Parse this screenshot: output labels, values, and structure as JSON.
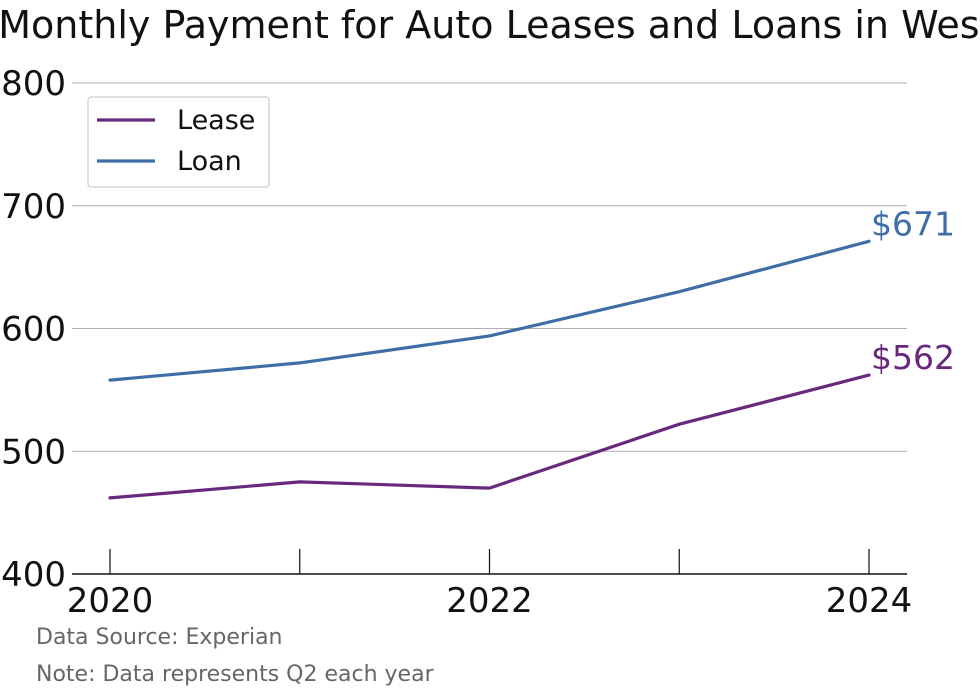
{
  "chart_data": {
    "type": "line",
    "title": "Average Monthly Payment for Auto Leases and Loans in West Virginia",
    "x": [
      2020,
      2021,
      2022,
      2023,
      2024
    ],
    "x_tick_labels": [
      "2020",
      "2022",
      "2024"
    ],
    "y_tick_labels": [
      "$400",
      "$500",
      "$600",
      "$700",
      "$800"
    ],
    "ylim": [
      400,
      800
    ],
    "grid": "horizontal",
    "legend_placement": "top-left",
    "series": [
      {
        "name": "Lease",
        "color": "#68297d",
        "values": [
          462,
          475,
          470,
          522,
          562
        ],
        "end_label": "$562"
      },
      {
        "name": "Loan",
        "color": "#3f6ea6",
        "values": [
          558,
          572,
          594,
          630,
          671
        ],
        "end_label": "$671"
      }
    ]
  },
  "footer": {
    "source": "Data Source: Experian",
    "note": "Note: Data represents Q2 each year"
  }
}
